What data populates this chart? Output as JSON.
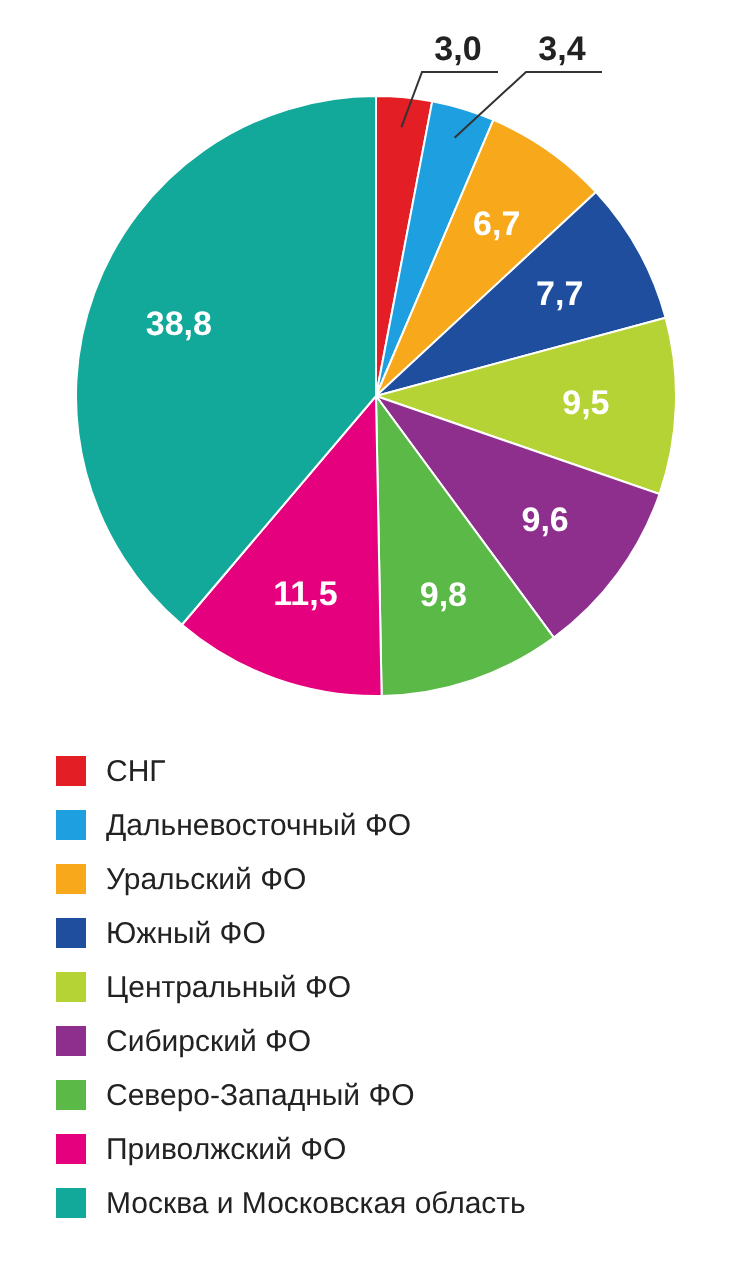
{
  "chart_data": {
    "type": "pie",
    "categories": [
      "СНГ",
      "Дальневосточный ФО",
      "Уральский ФО",
      "Южный ФО",
      "Центральный ФО",
      "Сибирский ФО",
      "Северо-Западный ФО",
      "Приволжский ФО",
      "Москва и Московская область"
    ],
    "values": [
      3.0,
      3.4,
      6.7,
      7.7,
      9.5,
      9.6,
      9.8,
      11.5,
      38.8
    ],
    "value_labels": [
      "3,0",
      "3,4",
      "6,7",
      "7,7",
      "9,5",
      "9,6",
      "9,8",
      "11,5",
      "38,8"
    ],
    "colors": [
      "#e31e24",
      "#1ea0e0",
      "#f7a81b",
      "#1f4e9e",
      "#b5d334",
      "#8e2f8e",
      "#5bb947",
      "#e5007e",
      "#12a89a"
    ],
    "legend": "bottom"
  }
}
